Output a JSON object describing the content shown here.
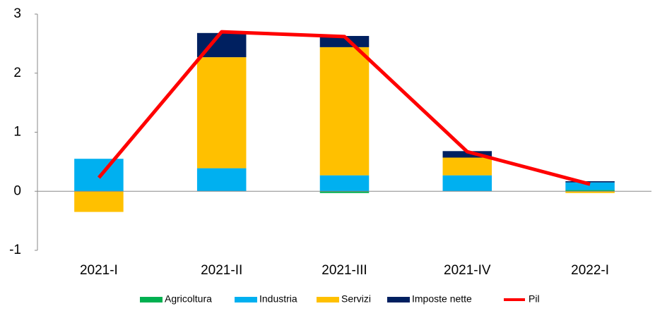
{
  "chart_data": {
    "type": "bar",
    "stacked": true,
    "categories": [
      "2021-I",
      "2021-II",
      "2021-III",
      "2021-IV",
      "2022-I"
    ],
    "series": [
      {
        "name": "Agricoltura",
        "color": "#00b050",
        "values": [
          0,
          0,
          -0.03,
          0,
          0.02
        ]
      },
      {
        "name": "Industria",
        "color": "#00b0f0",
        "values": [
          0.55,
          0.39,
          0.27,
          0.27,
          0.13
        ]
      },
      {
        "name": "Servizi",
        "color": "#ffc000",
        "values": [
          -0.35,
          1.88,
          2.17,
          0.3,
          -0.03
        ]
      },
      {
        "name": "Imposte nette",
        "color": "#002060",
        "values": [
          0,
          0.41,
          0.19,
          0.11,
          0.02
        ]
      },
      {
        "name": "Pil",
        "color": "#ff0000",
        "type": "line",
        "values": [
          0.23,
          2.7,
          2.62,
          0.67,
          0.12
        ]
      }
    ],
    "ylim": [
      -1,
      3
    ],
    "yticks": [
      -1,
      0,
      1,
      2,
      3
    ],
    "grid": false,
    "legend": "bottom"
  }
}
